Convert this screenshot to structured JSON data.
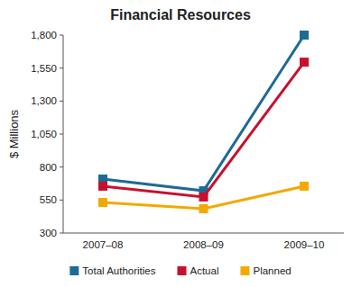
{
  "chart_data": {
    "type": "line",
    "title": "Financial Resources",
    "y_label": "$ Millions",
    "categories": [
      "2007–08",
      "2008–09",
      "2009–10"
    ],
    "series": [
      {
        "name": "Total Authorities",
        "color": "#1d6a96",
        "marker": "square",
        "values": [
          709,
          620,
          1800
        ]
      },
      {
        "name": "Actual",
        "color": "#c8102e",
        "marker": "square",
        "values": [
          655,
          573,
          1595
        ]
      },
      {
        "name": "Planned",
        "color": "#f2a900",
        "marker": "square",
        "values": [
          532,
          484,
          655
        ]
      }
    ],
    "ylim": [
      300,
      1800
    ],
    "yticks": [
      300,
      550,
      800,
      {
        "value": 1050,
        "label": "1,050"
      },
      {
        "value": 1300,
        "label": "1,300"
      },
      {
        "value": 1550,
        "label": "1,550"
      },
      {
        "value": 1800,
        "label": "1,800"
      }
    ],
    "grid": false,
    "legend": "bottom"
  }
}
